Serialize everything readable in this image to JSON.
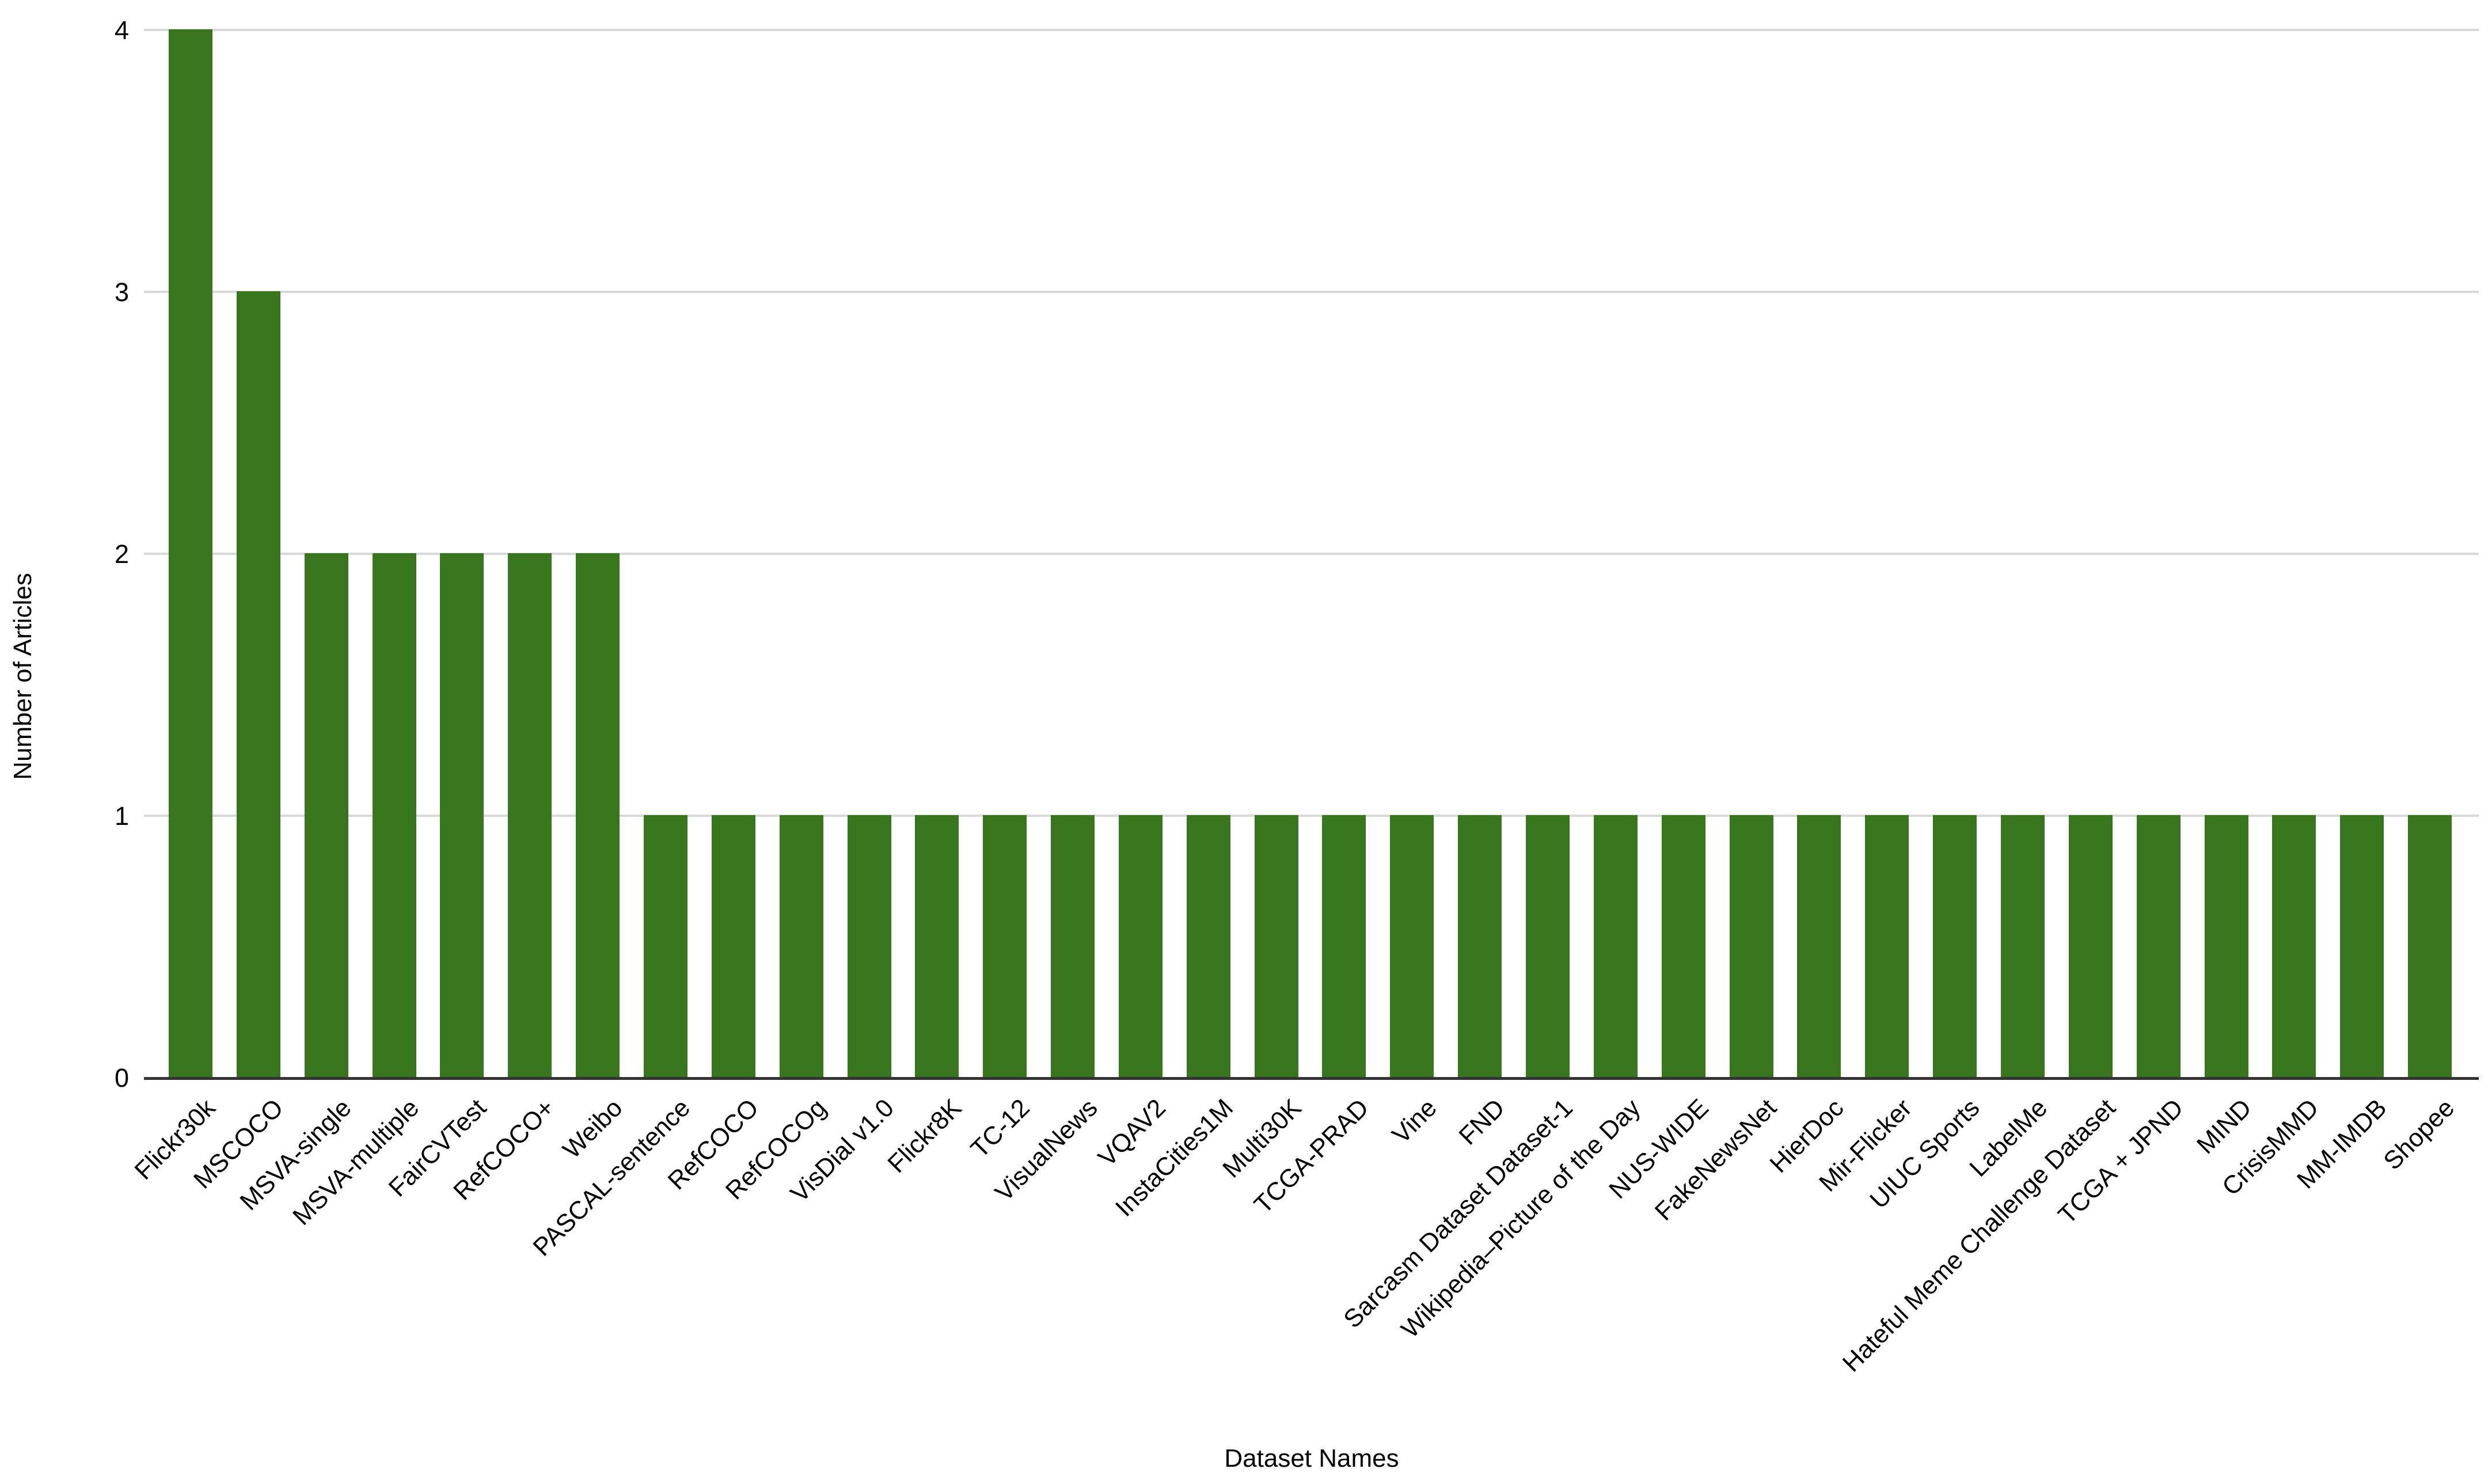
{
  "chart_data": {
    "type": "bar",
    "title": "",
    "xlabel": "Dataset Names",
    "ylabel": "Number of Articles",
    "categories": [
      "Flickr30k",
      "MSCOCO",
      "MSVA-single",
      "MSVA-multiple",
      "FairCVTest",
      "RefCOCO+",
      "Weibo",
      "PASCAL-sentence",
      "RefCOCO",
      "RefCOCOg",
      "VisDial v1.0",
      "Flickr8K",
      "TC-12",
      "VisualNews",
      "VQAV2",
      "InstaCities1M",
      "Multi30K",
      "TCGA-PRAD",
      "Vine",
      "FND",
      "Sarcasm Dataset Dataset-1",
      "Wikipedia–Picture of the Day",
      "NUS-WIDE",
      "FakeNewsNet",
      "HierDoc",
      "Mir-Flicker",
      "UIUC Sports",
      "LabelMe",
      "Hateful Meme Challenge Dataset",
      "TCGA + JPND",
      "MIND",
      "CrisisMMD",
      "MM-IMDB",
      "Shopee"
    ],
    "values": [
      4,
      3,
      2,
      2,
      2,
      2,
      2,
      1,
      1,
      1,
      1,
      1,
      1,
      1,
      1,
      1,
      1,
      1,
      1,
      1,
      1,
      1,
      1,
      1,
      1,
      1,
      1,
      1,
      1,
      1,
      1,
      1,
      1,
      1
    ],
    "ylim": [
      0,
      4
    ],
    "yticks": [
      0,
      1,
      2,
      3,
      4
    ],
    "grid": "horizontal",
    "legend": "none",
    "colors": {
      "bar": "#38761d",
      "gridline": "#d9d9d9",
      "axis": "#333333",
      "text": "#000000",
      "background": "#ffffff"
    }
  }
}
